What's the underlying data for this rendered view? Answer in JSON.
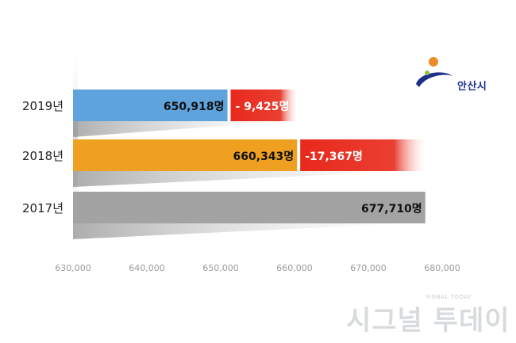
{
  "chart_data": {
    "type": "bar",
    "orientation": "horizontal",
    "categories": [
      "2019년",
      "2018년",
      "2017년"
    ],
    "values": [
      650918,
      660343,
      677710
    ],
    "value_labels": [
      "650,918명",
      "660,343명",
      "677,710명"
    ],
    "change_values": [
      -9425,
      -17367,
      null
    ],
    "change_labels": [
      "- 9,425명",
      "-17,367명",
      ""
    ],
    "bar_colors": [
      "#5fa3dc",
      "#f0a020",
      "#a3a3a3"
    ],
    "change_color": "#e8291c",
    "xlim": [
      630000,
      680000
    ],
    "xticks": [
      "630,000",
      "640,000",
      "650,000",
      "660,000",
      "670,000",
      "680,000"
    ],
    "title": "",
    "xlabel": "",
    "ylabel": "",
    "grid": false,
    "legend": "none"
  },
  "logo": {
    "text": "안산시",
    "colors": [
      "#f08a24",
      "#1d2f8a",
      "#8cc63f"
    ],
    "icon": "ansan-city-logo-icon"
  },
  "watermark": {
    "sub": "SIGNAL TODAY",
    "main": "시그널 투데이"
  }
}
